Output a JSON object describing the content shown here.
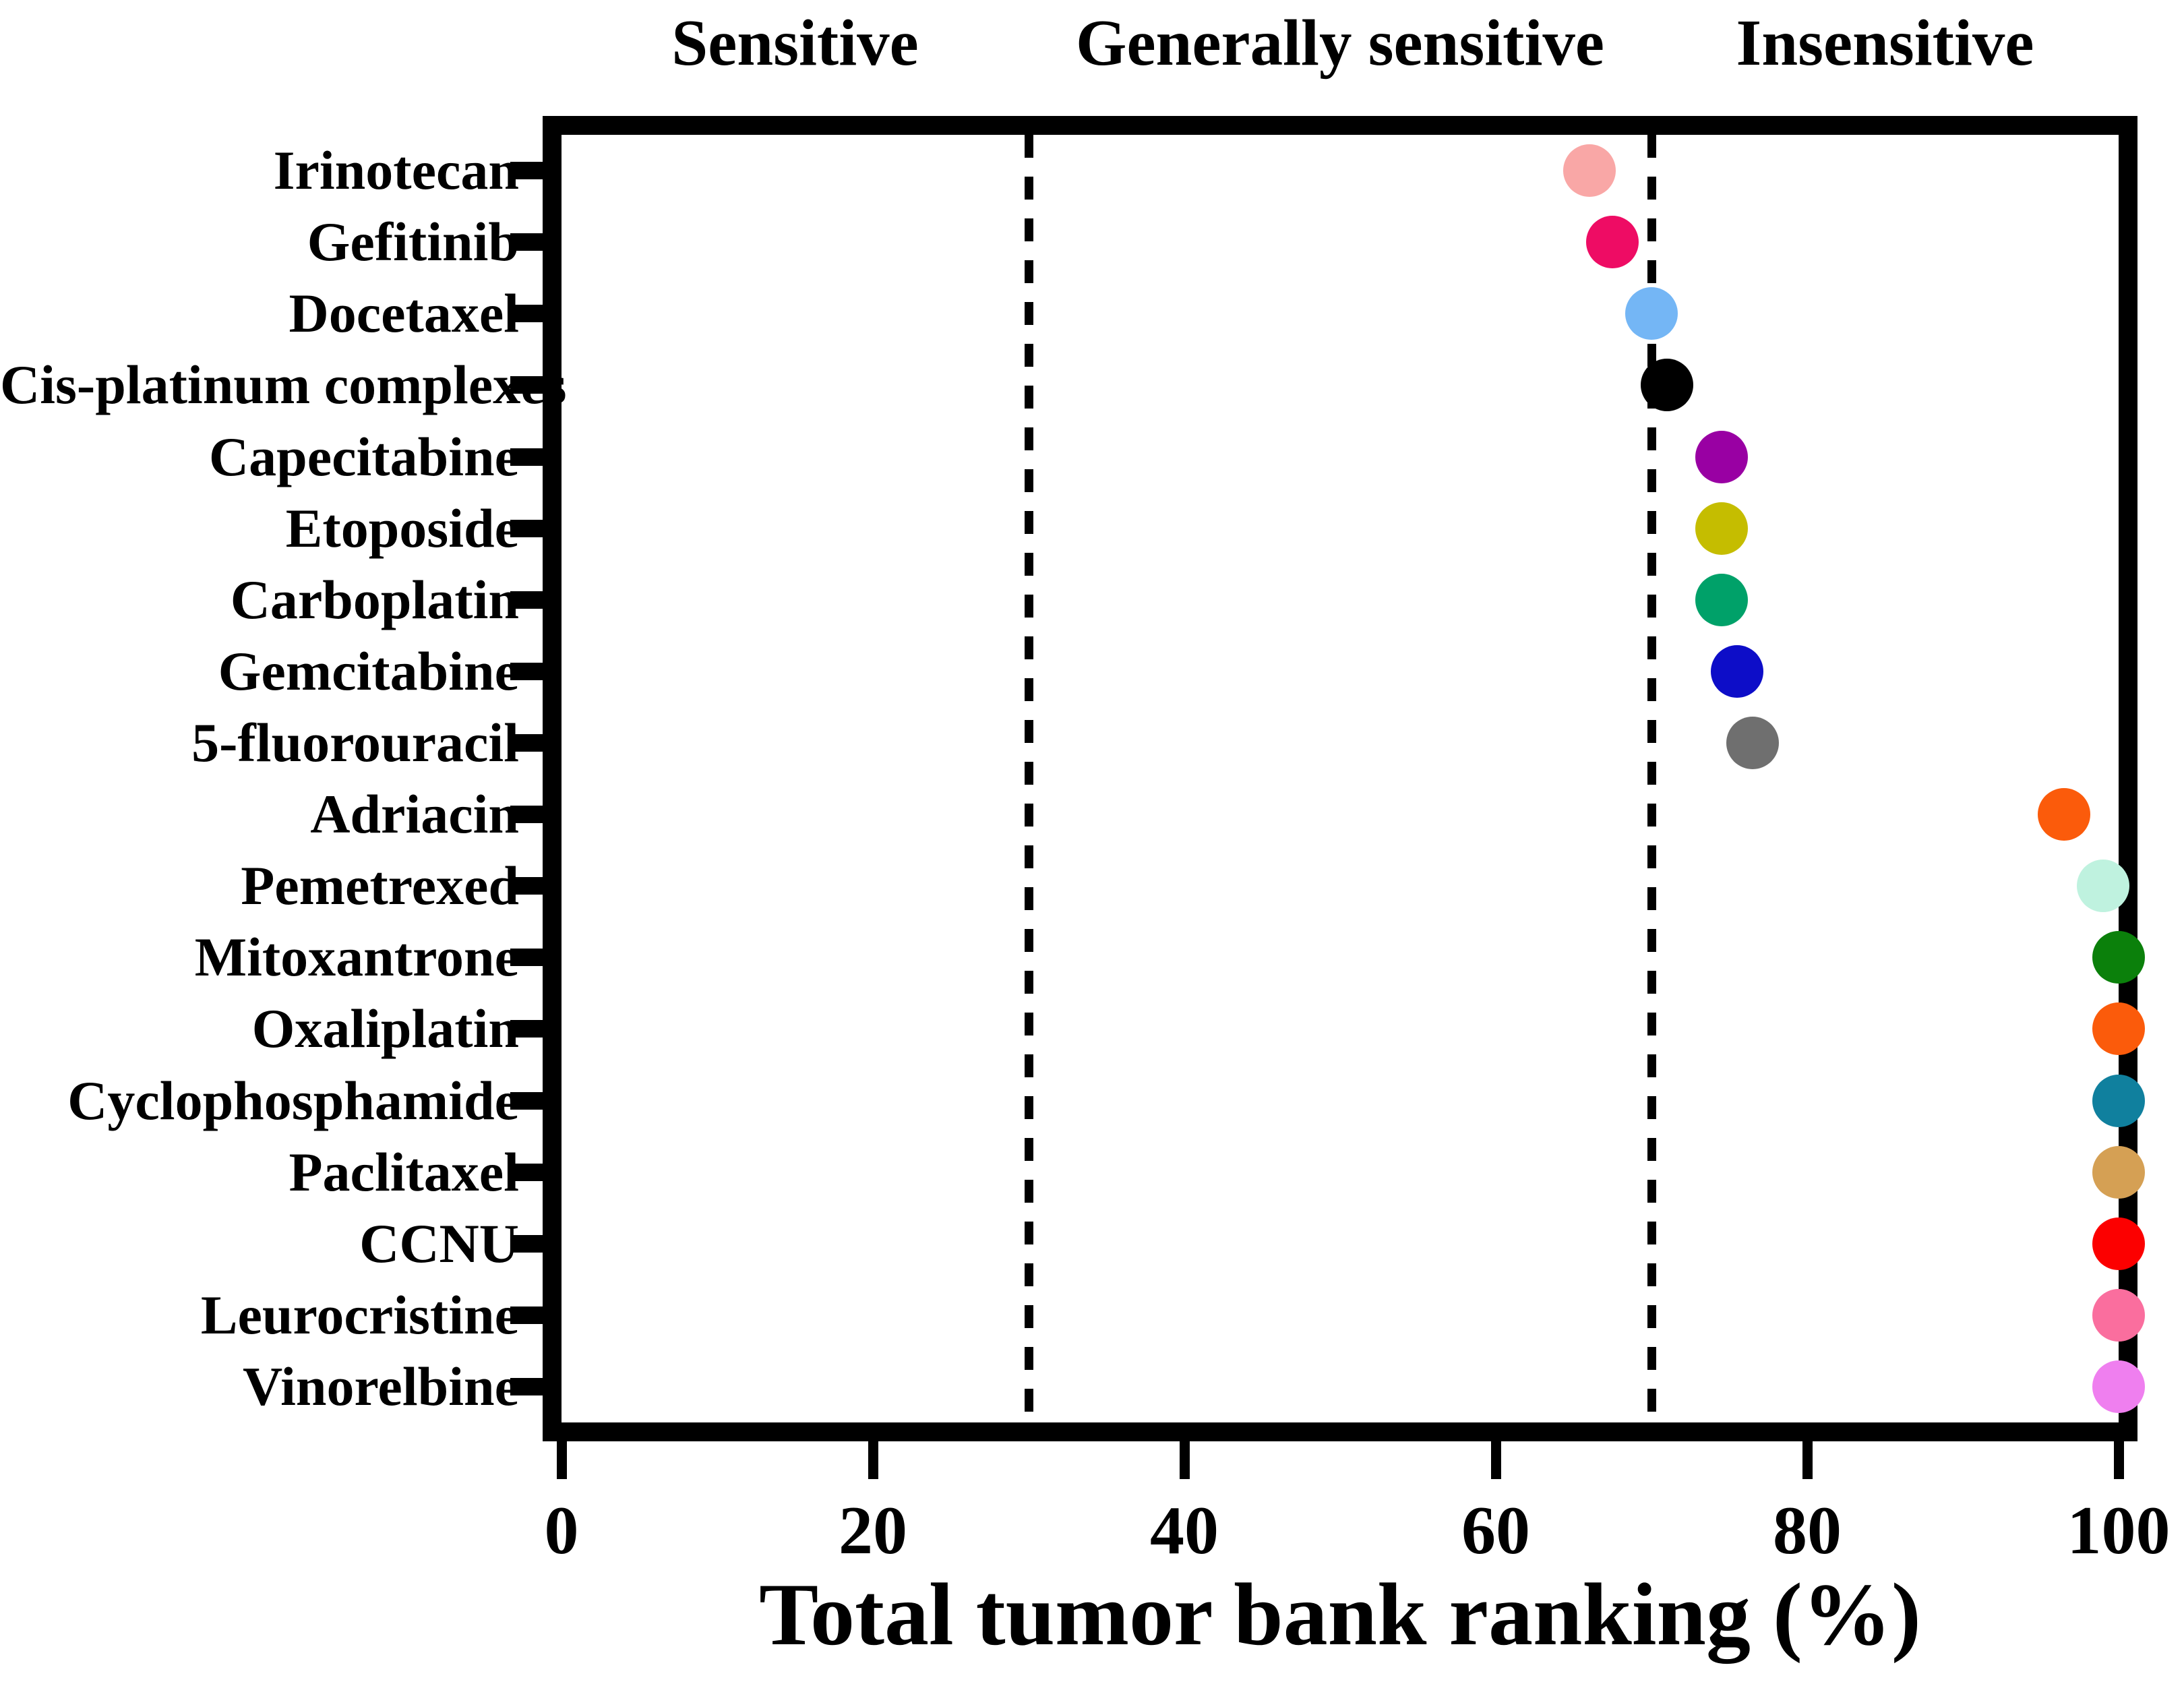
{
  "figure": {
    "background_color": "#FFFFFF",
    "axis_color": "#000000",
    "zones": [
      {
        "label": "Sensitive",
        "x_start": 0,
        "x_end": 30
      },
      {
        "label": "Generally sensitive",
        "x_start": 30,
        "x_end": 70
      },
      {
        "label": "Insensitive",
        "x_start": 70,
        "x_end": 100
      }
    ]
  },
  "chart_data": {
    "type": "scatter",
    "title": "",
    "xlabel": "Total tumor bank ranking (%)",
    "ylabel": "",
    "xlim": [
      0,
      100
    ],
    "x_ticks": [
      0,
      20,
      40,
      60,
      80,
      100
    ],
    "grid": false,
    "threshold_lines_x": [
      30,
      70
    ],
    "legend": "none",
    "categories": [
      "Irinotecan",
      "Gefitinib",
      "Docetaxel",
      "Cis-platinum complexes",
      "Capecitabine",
      "Etoposide",
      "Carboplatin",
      "Gemcitabine",
      "5-fluorouracil",
      "Adriacin",
      "Pemetrexed",
      "Mitoxantrone",
      "Oxaliplatin",
      "Cyclophosphamide",
      "Paclitaxel",
      "CCNU",
      "Leurocristine",
      "Vinorelbine"
    ],
    "points": [
      {
        "drug": "Irinotecan",
        "value": 66,
        "color": "#F9A7A6"
      },
      {
        "drug": "Gefitinib",
        "value": 67.5,
        "color": "#EE0C64"
      },
      {
        "drug": "Docetaxel",
        "value": 70,
        "color": "#74B6F5"
      },
      {
        "drug": "Cis-platinum complexes",
        "value": 71,
        "color": "#000000"
      },
      {
        "drug": "Capecitabine",
        "value": 74.5,
        "color": "#9900A3"
      },
      {
        "drug": "Etoposide",
        "value": 74.5,
        "color": "#C5BD00"
      },
      {
        "drug": "Carboplatin",
        "value": 74.5,
        "color": "#00A169"
      },
      {
        "drug": "Gemcitabine",
        "value": 75.5,
        "color": "#0D0DC8"
      },
      {
        "drug": "5-fluorouracil",
        "value": 76.5,
        "color": "#6F6F6F"
      },
      {
        "drug": "Adriacin",
        "value": 96.5,
        "color": "#FB5B0B"
      },
      {
        "drug": "Pemetrexed",
        "value": 99,
        "color": "#BFF2DF"
      },
      {
        "drug": "Mitoxantrone",
        "value": 100,
        "color": "#0B800B"
      },
      {
        "drug": "Oxaliplatin",
        "value": 100,
        "color": "#FB5B0B"
      },
      {
        "drug": "Cyclophosphamide",
        "value": 100,
        "color": "#10809E"
      },
      {
        "drug": "Paclitaxel",
        "value": 100,
        "color": "#D5A054"
      },
      {
        "drug": "CCNU",
        "value": 100,
        "color": "#FC0000"
      },
      {
        "drug": "Leurocristine",
        "value": 100,
        "color": "#FA6E9E"
      },
      {
        "drug": "Vinorelbine",
        "value": 100,
        "color": "#EF7FEF"
      }
    ]
  }
}
